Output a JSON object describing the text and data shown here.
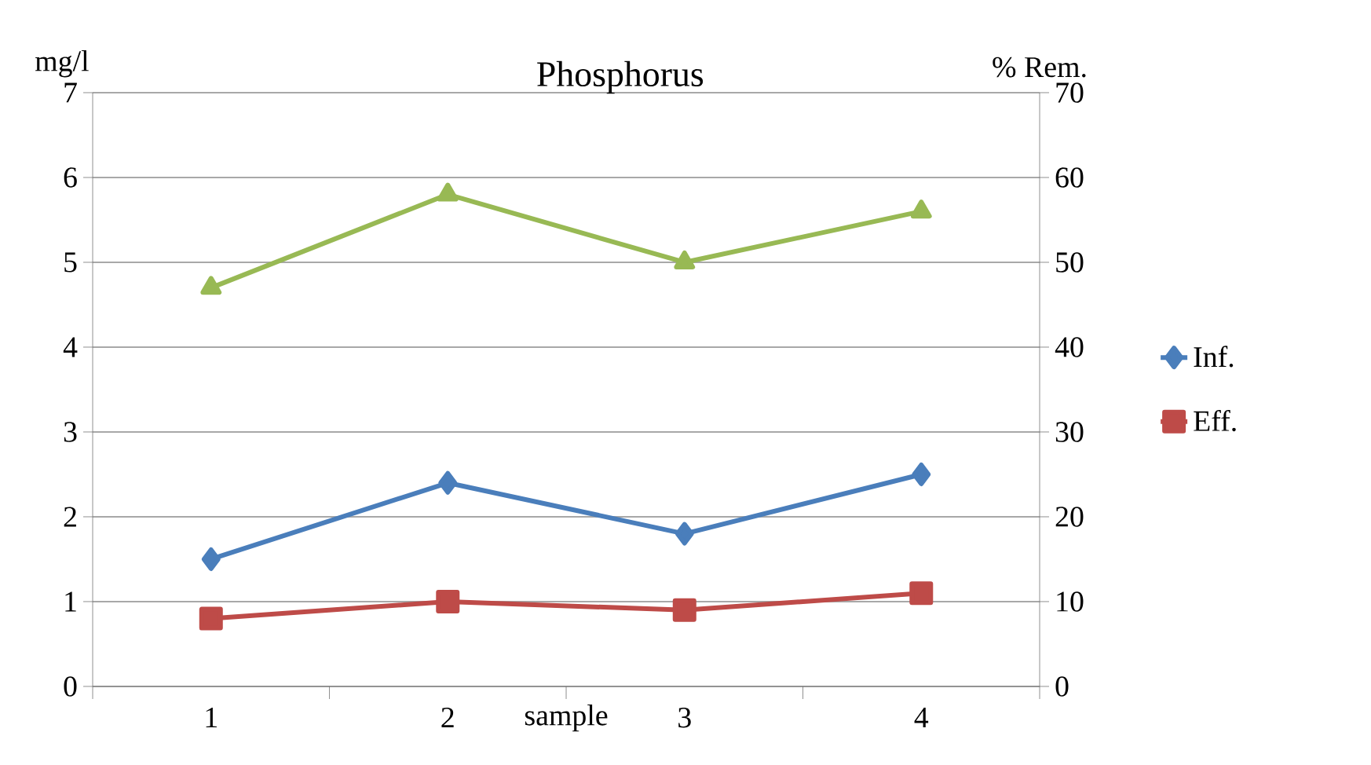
{
  "chart_data": {
    "type": "line",
    "title": "Phosphorus",
    "xlabel": "sample",
    "ylabel": "mg/l",
    "y2label": "% Rem.",
    "categories": [
      "1",
      "2",
      "3",
      "4"
    ],
    "series": [
      {
        "name": "Inf.",
        "color": "#4a7ebb",
        "marker": "diamond",
        "values": [
          1.5,
          2.4,
          1.8,
          2.5
        ]
      },
      {
        "name": "Eff.",
        "color": "#be4b48",
        "marker": "square",
        "values": [
          0.8,
          1.0,
          0.9,
          1.1
        ]
      },
      {
        "color": "#98b954",
        "marker": "triangle",
        "axis": "y2",
        "values": [
          47,
          58,
          50,
          56
        ]
      }
    ],
    "ylim": [
      0,
      7
    ],
    "yticks": [
      0,
      1,
      2,
      3,
      4,
      5,
      6,
      7
    ],
    "y2lim": [
      0,
      70
    ],
    "y2ticks": [
      0,
      10,
      20,
      30,
      40,
      50,
      60,
      70
    ],
    "grid": "y",
    "legend": "right"
  }
}
